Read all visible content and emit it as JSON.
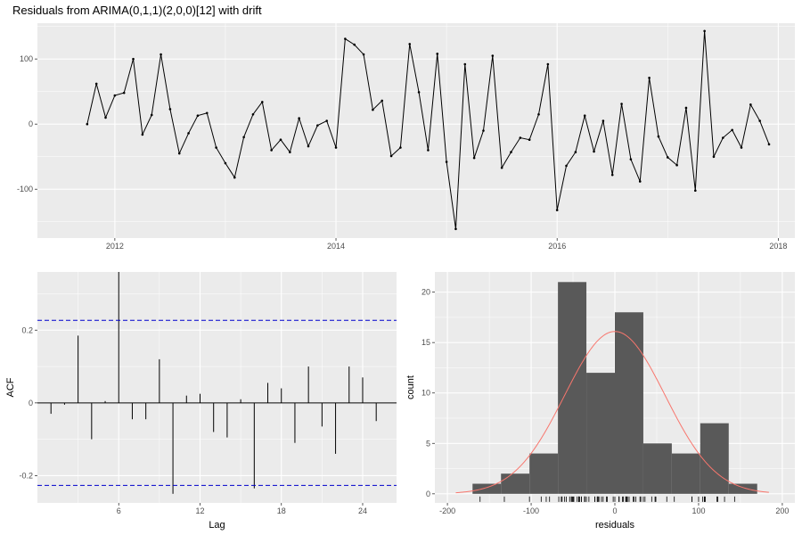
{
  "chart_data": [
    {
      "type": "line",
      "title": "Residuals from ARIMA(0,1,1)(2,0,0)[12] with drift",
      "xlabel": "",
      "ylabel": "",
      "xlim": [
        2011.3,
        2018.15
      ],
      "ylim": [
        -175,
        155
      ],
      "x_ticks": [
        2012,
        2014,
        2016,
        2018
      ],
      "y_ticks": [
        -100,
        0,
        100
      ],
      "grid": true,
      "x_start": 2011.75,
      "x_step": 0.08333,
      "values": [
        0,
        62,
        10,
        44,
        48,
        100,
        -16,
        14,
        107,
        23,
        -45,
        -14,
        13,
        17,
        -36,
        -60,
        -82,
        -20,
        15,
        34,
        -40,
        -24,
        -43,
        9,
        -34,
        -2,
        5,
        -36,
        131,
        122,
        107,
        22,
        36,
        -49,
        -36,
        123,
        49,
        -40,
        108,
        -58,
        -161,
        92,
        -52,
        -10,
        105,
        -67,
        -43,
        -21,
        -24,
        15,
        92,
        -132,
        -64,
        -43,
        13,
        -42,
        5,
        -78,
        31,
        -54,
        -88,
        71,
        -19,
        -51,
        -63,
        25,
        -102,
        143,
        -50,
        -21,
        -9,
        -36,
        30,
        5,
        -31
      ]
    },
    {
      "type": "bar",
      "subtype": "acf",
      "xlabel": "Lag",
      "ylabel": "ACF",
      "xlim": [
        0,
        26.5
      ],
      "ylim": [
        -0.275,
        0.36
      ],
      "x_ticks": [
        6,
        12,
        18,
        24
      ],
      "y_ticks": [
        -0.2,
        0.0,
        0.2
      ],
      "confidence_bound": 0.227,
      "lags": [
        1,
        2,
        3,
        4,
        5,
        6,
        7,
        8,
        9,
        10,
        11,
        12,
        13,
        14,
        15,
        16,
        17,
        18,
        19,
        20,
        21,
        22,
        23,
        24,
        25
      ],
      "values": [
        -0.03,
        -0.005,
        0.185,
        -0.1,
        0.005,
        0.36,
        -0.045,
        -0.045,
        0.12,
        -0.25,
        0.02,
        0.025,
        -0.08,
        -0.095,
        0.01,
        -0.235,
        0.055,
        0.04,
        -0.11,
        0.1,
        -0.065,
        -0.14,
        0.1,
        0.07,
        -0.05
      ]
    },
    {
      "type": "histogram",
      "xlabel": "residuals",
      "ylabel": "count",
      "xlim": [
        -215,
        215
      ],
      "ylim": [
        -0.9,
        22
      ],
      "x_ticks": [
        -200,
        -100,
        0,
        100,
        200
      ],
      "y_ticks": [
        0,
        5,
        10,
        15,
        20
      ],
      "bin_width": 34,
      "bin_starts": [
        -170,
        -136,
        -102,
        -68,
        -34,
        0,
        34,
        68,
        102,
        136
      ],
      "counts": [
        1,
        2,
        4,
        21,
        12,
        18,
        5,
        4,
        7,
        1
      ],
      "normal_curve": {
        "mean": 0,
        "sd": 60,
        "peak_count": 16.1,
        "range": [
          -190,
          185
        ],
        "color": "#F8766D"
      },
      "rug": [
        0,
        62,
        10,
        44,
        48,
        100,
        -16,
        14,
        107,
        23,
        -45,
        -14,
        13,
        17,
        -36,
        -60,
        -82,
        -20,
        15,
        34,
        -40,
        -24,
        -43,
        9,
        -34,
        -2,
        5,
        -36,
        131,
        122,
        107,
        22,
        36,
        -49,
        -36,
        123,
        49,
        -40,
        108,
        -58,
        -161,
        92,
        -52,
        -10,
        105,
        -67,
        -43,
        -21,
        -24,
        15,
        92,
        -132,
        -64,
        -43,
        13,
        -42,
        5,
        -78,
        31,
        -54,
        -88,
        71,
        -19,
        -51,
        -63,
        25,
        -102,
        143,
        -50,
        -21,
        -9,
        -36,
        30,
        5,
        -31
      ]
    }
  ],
  "colors": {
    "panel_bg": "#EBEBEB",
    "grid": "#FFFFFF",
    "line": "#000000",
    "bound": "#0000CC",
    "bar": "#595959",
    "curve": "#F8766D"
  }
}
